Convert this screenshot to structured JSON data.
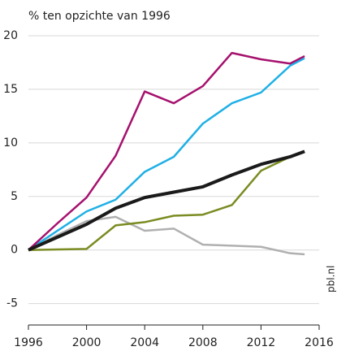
{
  "chart_data": {
    "type": "line",
    "title": "% ten opzichte van 1996",
    "source": "pbl.nl",
    "x": [
      1996,
      1998,
      2000,
      2002,
      2004,
      2006,
      2008,
      2010,
      2012,
      2014,
      2015
    ],
    "series": [
      {
        "color": "#b0b0b0",
        "linewidth": 2.5,
        "values": [
          0,
          1.4,
          2.7,
          3.1,
          1.8,
          2.0,
          0.5,
          0.4,
          0.3,
          -0.3,
          -0.4
        ]
      },
      {
        "color": "#7a8c22",
        "linewidth": 2.5,
        "values": [
          0,
          0.05,
          0.1,
          2.3,
          2.6,
          3.2,
          3.3,
          4.2,
          7.4,
          8.7,
          9.2
        ]
      },
      {
        "color": "#1fb0e6",
        "linewidth": 2.5,
        "values": [
          0,
          1.8,
          3.6,
          4.7,
          7.3,
          8.7,
          11.8,
          13.7,
          14.7,
          17.2,
          17.9
        ]
      },
      {
        "color": "#a6116e",
        "linewidth": 2.5,
        "values": [
          0,
          2.5,
          4.9,
          8.8,
          14.8,
          13.7,
          15.3,
          18.4,
          17.8,
          17.4,
          18.1
        ]
      },
      {
        "color": "#1a1a1a",
        "linewidth": 4,
        "values": [
          0,
          1.2,
          2.4,
          3.9,
          4.9,
          5.4,
          5.9,
          7.0,
          8.0,
          8.7,
          9.2
        ]
      }
    ],
    "xlim": [
      1996,
      2016
    ],
    "xticks": [
      1996,
      2000,
      2004,
      2008,
      2012,
      2016
    ],
    "ylim": [
      -7,
      20
    ],
    "yticks": [
      -5,
      0,
      5,
      10,
      15,
      20
    ],
    "grid": true
  }
}
